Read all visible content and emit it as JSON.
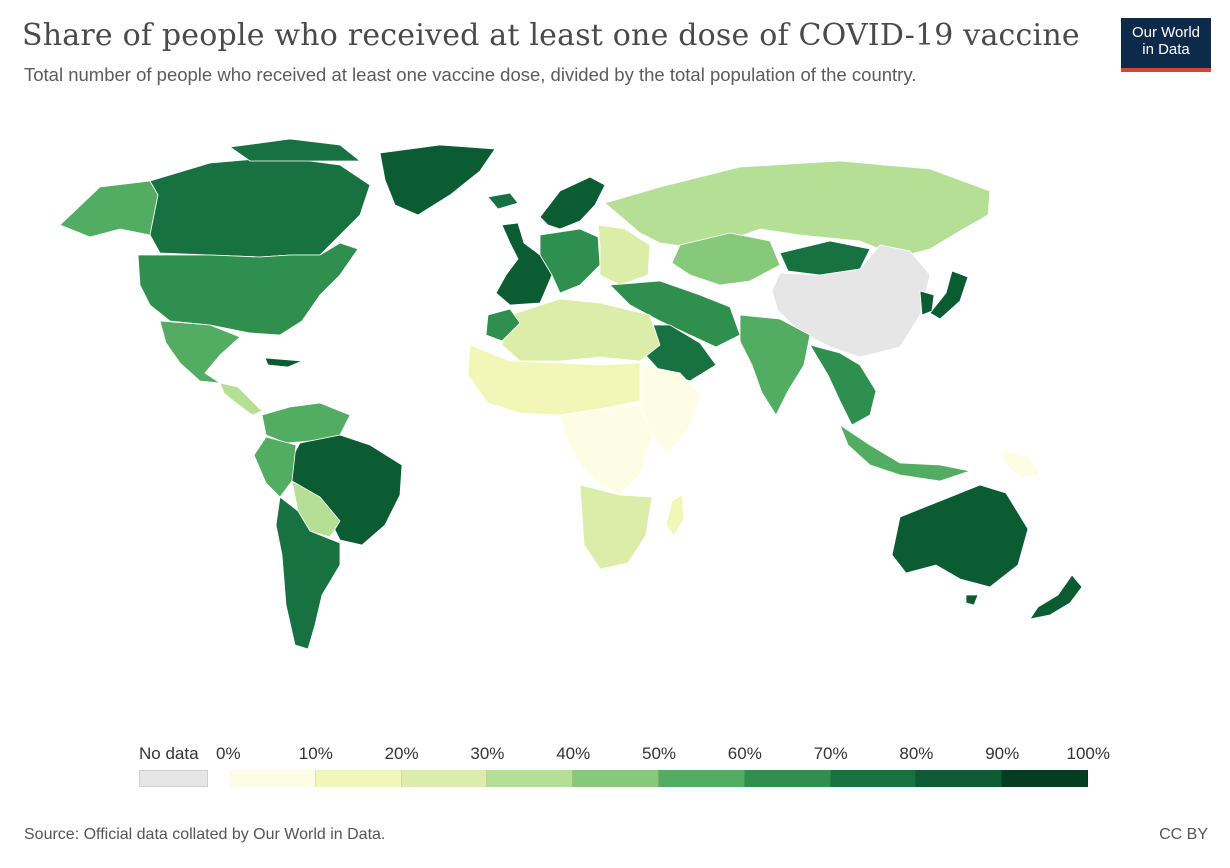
{
  "header": {
    "title": "Share of people who received at least one dose of COVID-19 vaccine",
    "subtitle": "Total number of people who received at least one vaccine dose, divided by the total population of the country.",
    "logo_line1": "Our World",
    "logo_line2": "in Data"
  },
  "legend": {
    "no_data_label": "No data",
    "no_data_color": "#e6e6e6",
    "tick_labels": [
      "0%",
      "10%",
      "20%",
      "30%",
      "40%",
      "50%",
      "60%",
      "70%",
      "80%",
      "90%",
      "100%"
    ],
    "bin_colors": [
      "#fdfde6",
      "#f2f6b6",
      "#dcedaa",
      "#b5df95",
      "#86c97a",
      "#52ad62",
      "#2f8f4e",
      "#177140",
      "#0c5c33",
      "#053d22"
    ]
  },
  "regions": [
    {
      "name": "Alaska / Canada west",
      "bin": 5
    },
    {
      "name": "Canada",
      "bin": 7
    },
    {
      "name": "Greenland",
      "bin": 8
    },
    {
      "name": "United States",
      "bin": 6
    },
    {
      "name": "Mexico",
      "bin": 5
    },
    {
      "name": "Central America",
      "bin": 3
    },
    {
      "name": "Cuba",
      "bin": 8
    },
    {
      "name": "Colombia / Venezuela",
      "bin": 5
    },
    {
      "name": "Brazil",
      "bin": 8
    },
    {
      "name": "Peru",
      "bin": 5
    },
    {
      "name": "Bolivia / Paraguay",
      "bin": 3
    },
    {
      "name": "Argentina / Chile",
      "bin": 7
    },
    {
      "name": "Iceland",
      "bin": 7
    },
    {
      "name": "Scandinavia",
      "bin": 8
    },
    {
      "name": "Western Europe",
      "bin": 8
    },
    {
      "name": "Central Europe",
      "bin": 6
    },
    {
      "name": "Eastern Europe",
      "bin": 2
    },
    {
      "name": "Russia",
      "bin": 3
    },
    {
      "name": "Kazakhstan / Central Asia",
      "bin": 4
    },
    {
      "name": "Mongolia",
      "bin": 7
    },
    {
      "name": "China",
      "bin": -1
    },
    {
      "name": "Japan",
      "bin": 8
    },
    {
      "name": "Korea",
      "bin": 8
    },
    {
      "name": "Turkey / Iran",
      "bin": 6
    },
    {
      "name": "Saudi Arabia / Gulf",
      "bin": 7
    },
    {
      "name": "India",
      "bin": 5
    },
    {
      "name": "Southeast Asia",
      "bin": 6
    },
    {
      "name": "Indonesia",
      "bin": 5
    },
    {
      "name": "North Africa",
      "bin": 2
    },
    {
      "name": "Morocco",
      "bin": 6
    },
    {
      "name": "Sahel / West Africa",
      "bin": 1
    },
    {
      "name": "Central Africa",
      "bin": 0
    },
    {
      "name": "East Africa",
      "bin": 0
    },
    {
      "name": "Southern Africa",
      "bin": 2
    },
    {
      "name": "Madagascar",
      "bin": 1
    },
    {
      "name": "Australia",
      "bin": 8
    },
    {
      "name": "New Zealand",
      "bin": 8
    },
    {
      "name": "Papua New Guinea",
      "bin": 0
    }
  ],
  "footer": {
    "source": "Source: Official data collated by Our World in Data.",
    "license": "CC BY"
  }
}
